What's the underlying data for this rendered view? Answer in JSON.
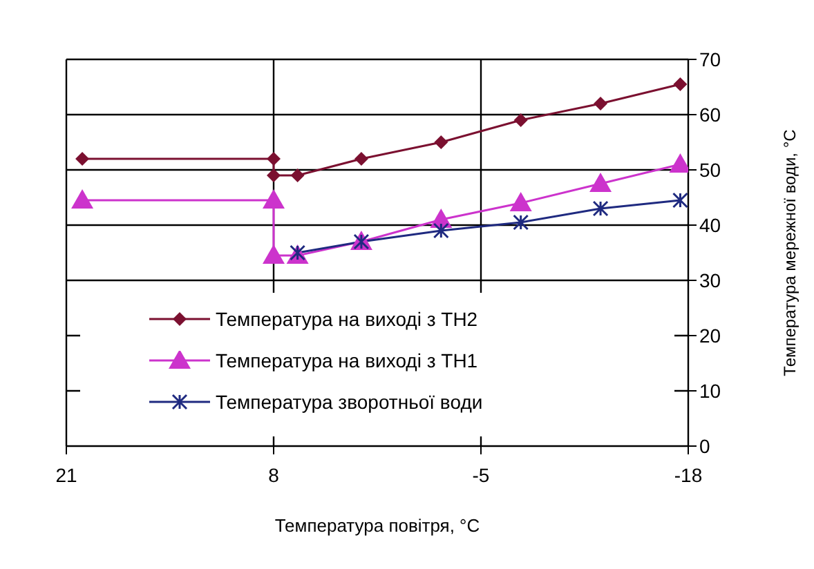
{
  "chart_data": {
    "type": "line",
    "xlabel": "Температура повітря, °C",
    "ylabel": "Температура мережної води, °C",
    "xlim": [
      21,
      -18
    ],
    "xticks": [
      21,
      8,
      -5,
      -18
    ],
    "ylim": [
      0,
      70
    ],
    "yticks": [
      0,
      10,
      20,
      30,
      40,
      50,
      60,
      70
    ],
    "grid": true,
    "legend": "bottom",
    "line_style": "solid",
    "series": [
      {
        "name": "Температура на виході з ТН2",
        "color": "#7b1030",
        "marker": "diamond",
        "x": [
          20,
          8,
          8,
          6.5,
          2.5,
          -2.5,
          -7.5,
          -12.5,
          -17.5
        ],
        "values": [
          52,
          52,
          49,
          49,
          52,
          55,
          59,
          62,
          65.5
        ]
      },
      {
        "name": "Температура на виході з ТН1",
        "color": "#cc33cc",
        "marker": "triangle",
        "x": [
          20,
          8,
          8,
          6.5,
          2.5,
          -2.5,
          -7.5,
          -12.5,
          -17.5
        ],
        "values": [
          44.5,
          44.5,
          34.5,
          34.5,
          37,
          41,
          44,
          47.5,
          51
        ]
      },
      {
        "name": "Температура зворотньої води",
        "color": "#1f2a80",
        "marker": "cross",
        "x": [
          6.5,
          2.5,
          -2.5,
          -7.5,
          -12.5,
          -17.5
        ],
        "values": [
          35,
          37,
          39,
          40.5,
          43,
          44.5
        ]
      }
    ]
  }
}
